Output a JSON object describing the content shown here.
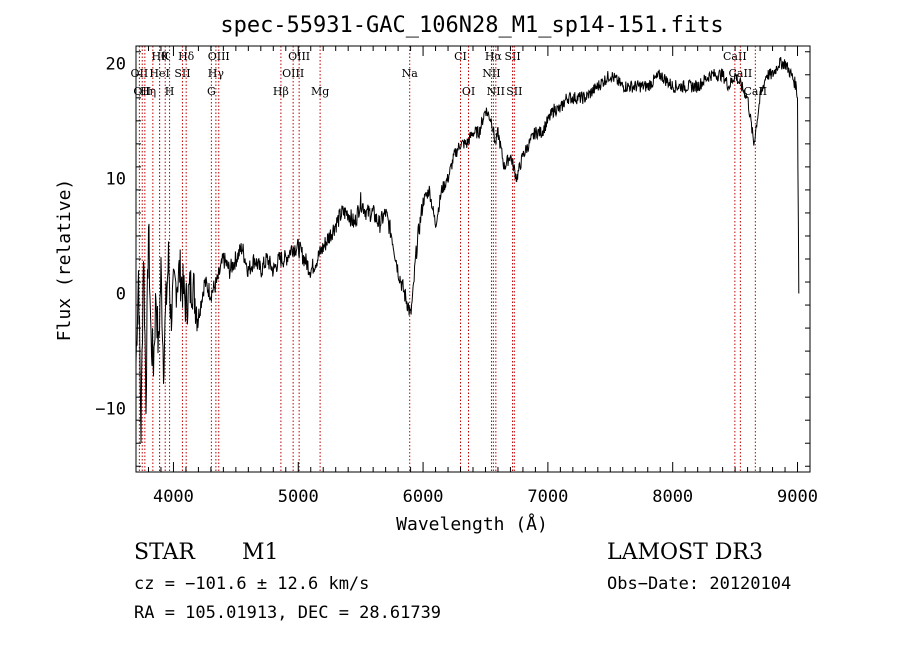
{
  "chart_data": {
    "type": "line",
    "title": "spec-55931-GAC_106N28_M1_sp14-151.fits",
    "xlabel": "Wavelength (Å)",
    "ylabel": "Flux (relative)",
    "xlim": [
      3700,
      9100
    ],
    "ylim": [
      -15.5,
      21.5
    ],
    "xticks": [
      4000,
      5000,
      6000,
      7000,
      8000,
      9000
    ],
    "xtick_labels": [
      "4000",
      "5000",
      "6000",
      "7000",
      "8000",
      "9000"
    ],
    "yticks": [
      -10,
      0,
      10,
      20
    ],
    "ytick_labels": [
      "−10",
      "0",
      "10",
      "20"
    ],
    "series": [
      {
        "name": "spectrum",
        "x": [
          3700,
          3720,
          3740,
          3760,
          3780,
          3800,
          3820,
          3840,
          3860,
          3880,
          3900,
          3920,
          3940,
          3960,
          3980,
          4000,
          4050,
          4100,
          4150,
          4200,
          4250,
          4300,
          4350,
          4400,
          4450,
          4500,
          4550,
          4600,
          4650,
          4700,
          4750,
          4800,
          4850,
          4900,
          4950,
          5000,
          5050,
          5100,
          5150,
          5200,
          5250,
          5300,
          5350,
          5400,
          5450,
          5500,
          5550,
          5600,
          5650,
          5700,
          5750,
          5800,
          5850,
          5880,
          5900,
          5920,
          5940,
          5960,
          6000,
          6050,
          6100,
          6150,
          6200,
          6250,
          6300,
          6350,
          6400,
          6450,
          6500,
          6550,
          6580,
          6600,
          6650,
          6700,
          6750,
          6800,
          6850,
          6900,
          6950,
          7000,
          7050,
          7100,
          7150,
          7200,
          7300,
          7400,
          7500,
          7600,
          7700,
          7800,
          7900,
          8000,
          8100,
          8200,
          8300,
          8400,
          8450,
          8500,
          8550,
          8600,
          8650,
          8700,
          8750,
          8800,
          8850,
          8900,
          8950,
          8990,
          9000,
          9010
        ],
        "y": [
          -6,
          2,
          -12,
          4,
          -9,
          6,
          -4,
          -6,
          0,
          -5,
          2,
          -6,
          -1,
          3,
          -2,
          0,
          2,
          -1,
          1,
          -2,
          1,
          0,
          1,
          3,
          2,
          3,
          4,
          2,
          3,
          2,
          3,
          2,
          3,
          3,
          4,
          4,
          3,
          2,
          3,
          4,
          5,
          6,
          7,
          7,
          6,
          8,
          7,
          7,
          6,
          7,
          5,
          2,
          0,
          -1,
          -2,
          0,
          3,
          5,
          8,
          9,
          6,
          9,
          10,
          12,
          13,
          13,
          14,
          14,
          16,
          15,
          13,
          14,
          11,
          12,
          10,
          12,
          13,
          14,
          14,
          15,
          16,
          16,
          17,
          17,
          17,
          18,
          19,
          18,
          18,
          18,
          19,
          18,
          18,
          18,
          19,
          19,
          18,
          19,
          18,
          17,
          13,
          17,
          19,
          19,
          20,
          20,
          19,
          18,
          17,
          0
        ]
      }
    ],
    "lines": [
      {
        "x": 3727,
        "label": "OII",
        "row": 2
      },
      {
        "x": 3750,
        "label": "OII",
        "row": 3
      },
      {
        "x": 3771,
        "label": "H",
        "row": 3
      },
      {
        "x": 3835,
        "label": "η",
        "row": 3
      },
      {
        "x": 3889,
        "label": "Hθ",
        "row": 1
      },
      {
        "x": 3889,
        "label": "HeI",
        "row": 2
      },
      {
        "x": 3934,
        "label": "K",
        "row": 1
      },
      {
        "x": 3969,
        "label": "H",
        "row": 3
      },
      {
        "x": 4072,
        "label": "SII",
        "row": 2
      },
      {
        "x": 4102,
        "label": "Hδ",
        "row": 1
      },
      {
        "x": 4304,
        "label": "G",
        "row": 3
      },
      {
        "x": 4340,
        "label": "Hγ",
        "row": 2
      },
      {
        "x": 4363,
        "label": "OIII",
        "row": 1
      },
      {
        "x": 4861,
        "label": "Hβ",
        "row": 3
      },
      {
        "x": 4959,
        "label": "OIII",
        "row": 2
      },
      {
        "x": 5007,
        "label": "OIII",
        "row": 1
      },
      {
        "x": 5175,
        "label": "Mg",
        "row": 3
      },
      {
        "x": 5893,
        "label": "Na",
        "row": 2
      },
      {
        "x": 6300,
        "label": "CI",
        "row": 1
      },
      {
        "x": 6364,
        "label": "OI",
        "row": 3
      },
      {
        "x": 6548,
        "label": "NII",
        "row": 2
      },
      {
        "x": 6563,
        "label": "Hα",
        "row": 1
      },
      {
        "x": 6583,
        "label": "NII",
        "row": 3
      },
      {
        "x": 6717,
        "label": "SII",
        "row": 1
      },
      {
        "x": 6731,
        "label": "SII",
        "row": 3
      },
      {
        "x": 8498,
        "label": "CaII",
        "row": 1
      },
      {
        "x": 8542,
        "label": "CaII",
        "row": 2
      },
      {
        "x": 8662,
        "label": "CaII",
        "row": 3
      }
    ]
  },
  "info": {
    "object_class": "STAR",
    "subclass": "M1",
    "survey": "LAMOST DR3",
    "cz": "cz = −101.6 ± 12.6 km/s",
    "obs_date": "Obs−Date: 20120104",
    "coords": "RA = 105.01913, DEC =  28.61739"
  }
}
